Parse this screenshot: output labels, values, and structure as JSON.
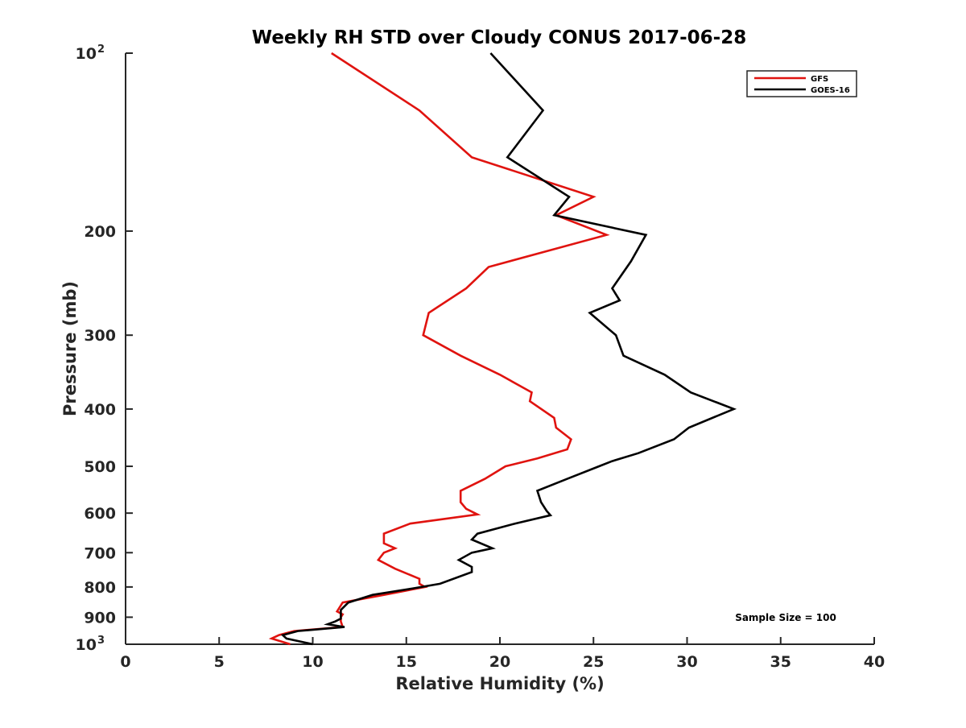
{
  "chart_data": {
    "type": "line",
    "title": "Weekly RH STD over Cloudy CONUS 2017-06-28",
    "xlabel": "Relative Humidity (%)",
    "ylabel": "Pressure (mb)",
    "xlim": [
      0,
      40
    ],
    "ylim": [
      100,
      1000
    ],
    "yscale": "log",
    "y_reversed": true,
    "grid": false,
    "legend_position": "top-right",
    "x_ticks": [
      "0",
      "5",
      "10",
      "15",
      "20",
      "25",
      "30",
      "35",
      "40"
    ],
    "y_ticks": [
      {
        "value": 100,
        "label": "10",
        "sup": "2"
      },
      {
        "value": 200,
        "label": "200",
        "sup": ""
      },
      {
        "value": 300,
        "label": "300",
        "sup": ""
      },
      {
        "value": 400,
        "label": "400",
        "sup": ""
      },
      {
        "value": 500,
        "label": "500",
        "sup": ""
      },
      {
        "value": 600,
        "label": "600",
        "sup": ""
      },
      {
        "value": 700,
        "label": "700",
        "sup": ""
      },
      {
        "value": 800,
        "label": "800",
        "sup": ""
      },
      {
        "value": 900,
        "label": "900",
        "sup": ""
      },
      {
        "value": 1000,
        "label": "10",
        "sup": "3"
      }
    ],
    "series": [
      {
        "name": "GFS",
        "color": "#e0130f",
        "points": [
          [
            11.0,
            100
          ],
          [
            15.7,
            125
          ],
          [
            18.5,
            150
          ],
          [
            25.0,
            175
          ],
          [
            23.0,
            188
          ],
          [
            25.7,
            203
          ],
          [
            19.4,
            230
          ],
          [
            18.2,
            250
          ],
          [
            16.2,
            275
          ],
          [
            15.9,
            300
          ],
          [
            17.9,
            325
          ],
          [
            20.0,
            350
          ],
          [
            21.7,
            375
          ],
          [
            21.6,
            388
          ],
          [
            22.9,
            414
          ],
          [
            23.0,
            430
          ],
          [
            23.8,
            450
          ],
          [
            23.6,
            468
          ],
          [
            22.0,
            485
          ],
          [
            20.3,
            500
          ],
          [
            19.2,
            525
          ],
          [
            17.9,
            550
          ],
          [
            17.9,
            575
          ],
          [
            18.2,
            590
          ],
          [
            18.8,
            603
          ],
          [
            15.2,
            625
          ],
          [
            13.8,
            650
          ],
          [
            13.8,
            675
          ],
          [
            14.4,
            688
          ],
          [
            13.8,
            700
          ],
          [
            13.5,
            720
          ],
          [
            14.4,
            745
          ],
          [
            15.7,
            775
          ],
          [
            15.7,
            790
          ],
          [
            16.0,
            800
          ],
          [
            13.8,
            825
          ],
          [
            11.6,
            850
          ],
          [
            11.3,
            880
          ],
          [
            11.6,
            890
          ],
          [
            11.5,
            900
          ],
          [
            11.5,
            915
          ],
          [
            11.6,
            935
          ],
          [
            9.0,
            950
          ],
          [
            8.2,
            965
          ],
          [
            7.8,
            978
          ],
          [
            8.8,
            1000
          ]
        ]
      },
      {
        "name": "GOES-16",
        "color": "#000000",
        "points": [
          [
            19.5,
            100
          ],
          [
            22.3,
            125
          ],
          [
            20.4,
            150
          ],
          [
            23.7,
            175
          ],
          [
            22.9,
            188
          ],
          [
            27.8,
            203
          ],
          [
            27.0,
            225
          ],
          [
            26.0,
            250
          ],
          [
            26.4,
            262
          ],
          [
            24.8,
            275
          ],
          [
            26.2,
            300
          ],
          [
            26.6,
            325
          ],
          [
            28.8,
            350
          ],
          [
            30.2,
            375
          ],
          [
            32.5,
            400
          ],
          [
            30.1,
            430
          ],
          [
            29.3,
            450
          ],
          [
            27.4,
            475
          ],
          [
            26.0,
            490
          ],
          [
            25.3,
            500
          ],
          [
            23.6,
            525
          ],
          [
            22.0,
            550
          ],
          [
            22.2,
            575
          ],
          [
            22.5,
            595
          ],
          [
            22.7,
            605
          ],
          [
            20.8,
            625
          ],
          [
            18.8,
            650
          ],
          [
            18.5,
            665
          ],
          [
            19.6,
            688
          ],
          [
            18.5,
            700
          ],
          [
            17.8,
            720
          ],
          [
            18.5,
            740
          ],
          [
            18.5,
            755
          ],
          [
            16.8,
            790
          ],
          [
            15.3,
            805
          ],
          [
            13.2,
            825
          ],
          [
            11.9,
            850
          ],
          [
            11.5,
            875
          ],
          [
            11.5,
            905
          ],
          [
            11.2,
            915
          ],
          [
            10.8,
            925
          ],
          [
            11.7,
            935
          ],
          [
            9.2,
            950
          ],
          [
            8.4,
            965
          ],
          [
            8.6,
            978
          ],
          [
            10.0,
            1000
          ]
        ]
      }
    ],
    "annotation": "Sample Size = 100"
  }
}
